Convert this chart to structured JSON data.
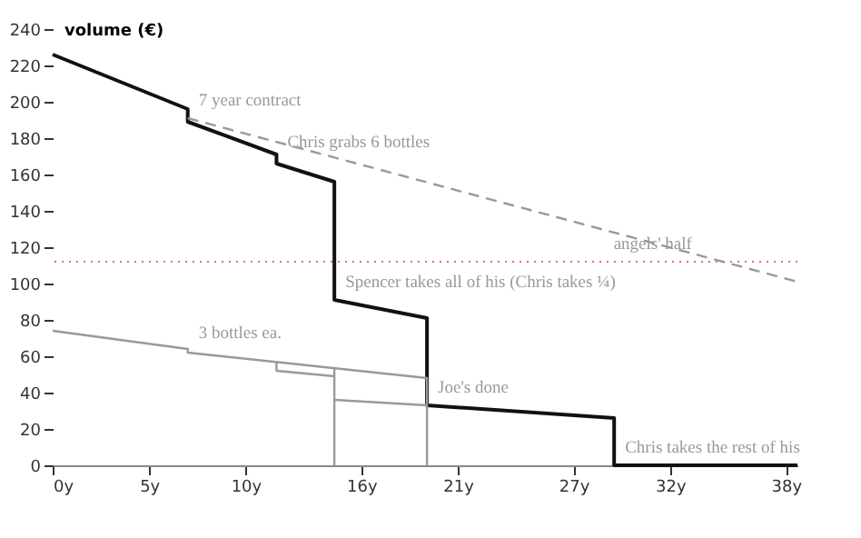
{
  "chart_data": {
    "type": "line",
    "ylabel": "volume (€)",
    "xlim": [
      0,
      38.6
    ],
    "ylim": [
      0,
      240
    ],
    "xticks": [
      {
        "value": 0,
        "label": "0y"
      },
      {
        "value": 5,
        "label": "5y"
      },
      {
        "value": 10,
        "label": "10y"
      },
      {
        "value": 16,
        "label": "16y"
      },
      {
        "value": 21,
        "label": "21y"
      },
      {
        "value": 27,
        "label": "27y"
      },
      {
        "value": 32,
        "label": "32y"
      },
      {
        "value": 38,
        "label": "38y"
      }
    ],
    "yticks": [
      0,
      20,
      40,
      60,
      80,
      100,
      120,
      140,
      160,
      180,
      200,
      220,
      240
    ],
    "grid": false,
    "line_style": "solid",
    "series": [
      {
        "color": "#111111",
        "x": [
          0,
          7,
          7,
          11.6,
          11.6,
          14.6,
          14.6,
          19.4,
          19.4,
          29.1,
          29.1,
          38.6
        ],
        "values": [
          226,
          196,
          189,
          171,
          166,
          156,
          91,
          81,
          33,
          26,
          0,
          0
        ]
      },
      {
        "color": "#999999",
        "line_style": "dashed",
        "x": [
          7,
          38.6
        ],
        "values": [
          191,
          101
        ]
      },
      {
        "color": "#999999",
        "x": [
          0,
          7,
          7,
          19.4,
          19.4
        ],
        "values": [
          74,
          64,
          62,
          48,
          0
        ]
      },
      {
        "color": "#999999",
        "x": [
          11.6,
          11.6,
          14.6
        ],
        "values": [
          57,
          52,
          49
        ]
      },
      {
        "color": "#999999",
        "x": [
          14.6,
          14.6
        ],
        "values": [
          53,
          0
        ]
      },
      {
        "color": "#999999",
        "x": [
          14.6,
          19.4
        ],
        "values": [
          36,
          33
        ]
      }
    ],
    "ref_lines": [
      {
        "axis": "y",
        "value": 112,
        "color": "#e07070",
        "line_style": "dotted"
      }
    ],
    "annotations": [
      {
        "text": "7 year contract",
        "x": 7,
        "y": 191
      },
      {
        "text": "Chris grabs 6 bottles",
        "x": 11.6,
        "y": 168
      },
      {
        "text": "angels' half",
        "x": 33.7,
        "y": 112
      },
      {
        "text": "Spencer takes all of his (Chris takes ¼)",
        "x": 14.6,
        "y": 91
      },
      {
        "text": "3 bottles ea.",
        "x": 7,
        "y": 63
      },
      {
        "text": "Joe's done",
        "x": 19.4,
        "y": 33
      },
      {
        "text": "Chris takes the rest of his",
        "x": 29.1,
        "y": 0
      }
    ]
  }
}
